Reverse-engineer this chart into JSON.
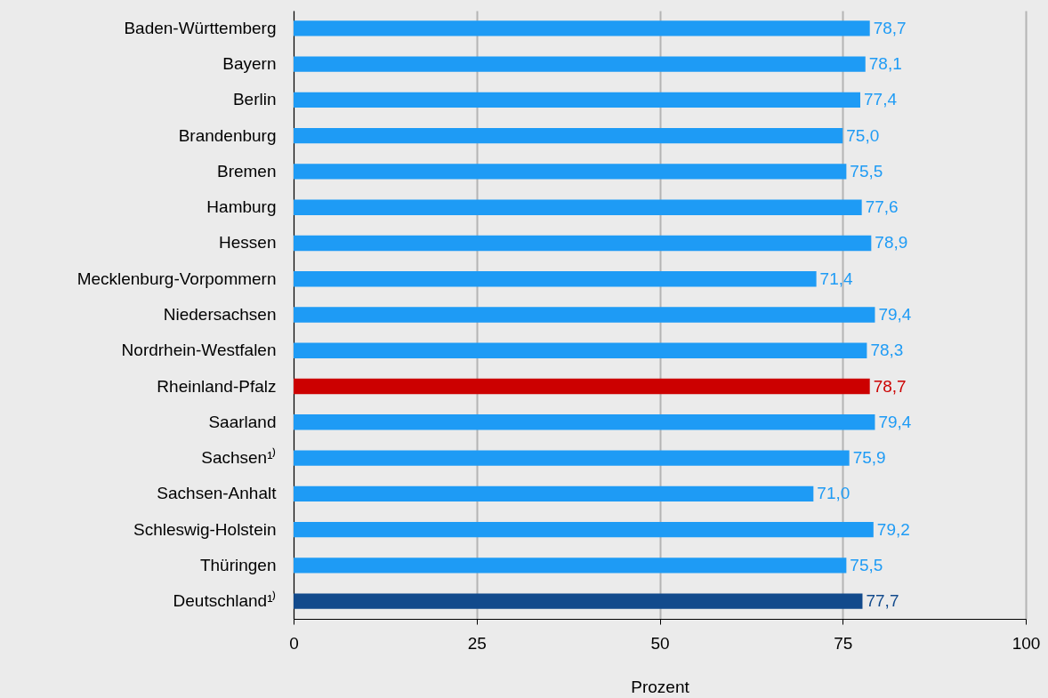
{
  "chart_data": {
    "type": "bar",
    "orientation": "horizontal",
    "xlabel": "Prozent",
    "categories": [
      "Baden-Württemberg",
      "Bayern",
      "Berlin",
      "Brandenburg",
      "Bremen",
      "Hamburg",
      "Hessen",
      "Mecklenburg-Vorpommern",
      "Niedersachsen",
      "Nordrhein-Westfalen",
      "Rheinland-Pfalz",
      "Saarland",
      "Sachsen¹⁾",
      "Sachsen-Anhalt",
      "Schleswig-Holstein",
      "Thüringen",
      "Deutschland¹⁾"
    ],
    "values": [
      78.7,
      78.1,
      77.4,
      75.0,
      75.5,
      77.6,
      78.9,
      71.4,
      79.4,
      78.3,
      78.7,
      79.4,
      75.9,
      71.0,
      79.2,
      75.5,
      77.7
    ],
    "value_labels": [
      "78,7",
      "78,1",
      "77,4",
      "75,0",
      "75,5",
      "77,6",
      "78,9",
      "71,4",
      "79,4",
      "78,3",
      "78,7",
      "79,4",
      "75,9",
      "71,0",
      "79,2",
      "75,5",
      "77,7"
    ],
    "colors": [
      "#1e9bf5",
      "#1e9bf5",
      "#1e9bf5",
      "#1e9bf5",
      "#1e9bf5",
      "#1e9bf5",
      "#1e9bf5",
      "#1e9bf5",
      "#1e9bf5",
      "#1e9bf5",
      "#cc0000",
      "#1e9bf5",
      "#1e9bf5",
      "#1e9bf5",
      "#1e9bf5",
      "#1e9bf5",
      "#124a8c"
    ],
    "xlim": [
      0,
      100
    ],
    "xticks": [
      0,
      25,
      50,
      75,
      100
    ],
    "grid": "x",
    "legend": false
  }
}
